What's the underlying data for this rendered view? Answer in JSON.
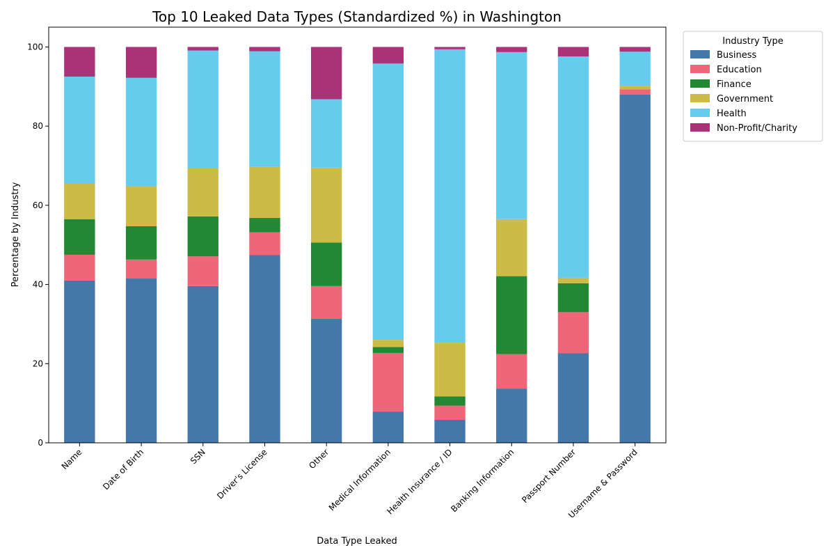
{
  "chart_data": {
    "type": "bar",
    "stacked": true,
    "title": "Top 10 Leaked Data Types (Standardized %) in Washington",
    "xlabel": "Data Type Leaked",
    "ylabel": "Percentage by Industry",
    "ylim": [
      0,
      105
    ],
    "yticks": [
      0,
      20,
      40,
      60,
      80,
      100
    ],
    "grid": false,
    "legend": {
      "title": "Industry Type",
      "placement": "outside-top-right"
    },
    "categories": [
      "Name",
      "Date of Birth",
      "SSN",
      "Driver's License",
      "Other",
      "Medical Information",
      "Health Insurance / ID",
      "Banking Information",
      "Passport Number",
      "Username & Password"
    ],
    "series": [
      {
        "name": "Business",
        "color": "#4477AA",
        "values": [
          41.0,
          41.5,
          39.6,
          47.4,
          31.3,
          7.9,
          5.8,
          13.7,
          22.6,
          88.0
        ]
      },
      {
        "name": "Education",
        "color": "#EE6677",
        "values": [
          6.5,
          4.8,
          7.5,
          5.8,
          8.3,
          14.8,
          3.6,
          8.7,
          10.4,
          1.3
        ]
      },
      {
        "name": "Finance",
        "color": "#228833",
        "values": [
          9.0,
          8.4,
          10.1,
          3.6,
          11.0,
          1.5,
          2.3,
          19.7,
          7.3,
          0.0
        ]
      },
      {
        "name": "Government",
        "color": "#CCBB44",
        "values": [
          9.1,
          10.1,
          12.1,
          13.0,
          18.9,
          1.8,
          13.6,
          14.4,
          1.4,
          0.9
        ]
      },
      {
        "name": "Health",
        "color": "#66CCEE",
        "values": [
          26.9,
          27.4,
          29.8,
          29.1,
          17.3,
          69.8,
          74.1,
          42.2,
          55.9,
          8.6
        ]
      },
      {
        "name": "Non-Profit/Charity",
        "color": "#AA3377",
        "values": [
          7.5,
          7.8,
          0.9,
          1.1,
          13.2,
          4.2,
          0.6,
          1.3,
          2.4,
          1.2
        ]
      }
    ]
  }
}
